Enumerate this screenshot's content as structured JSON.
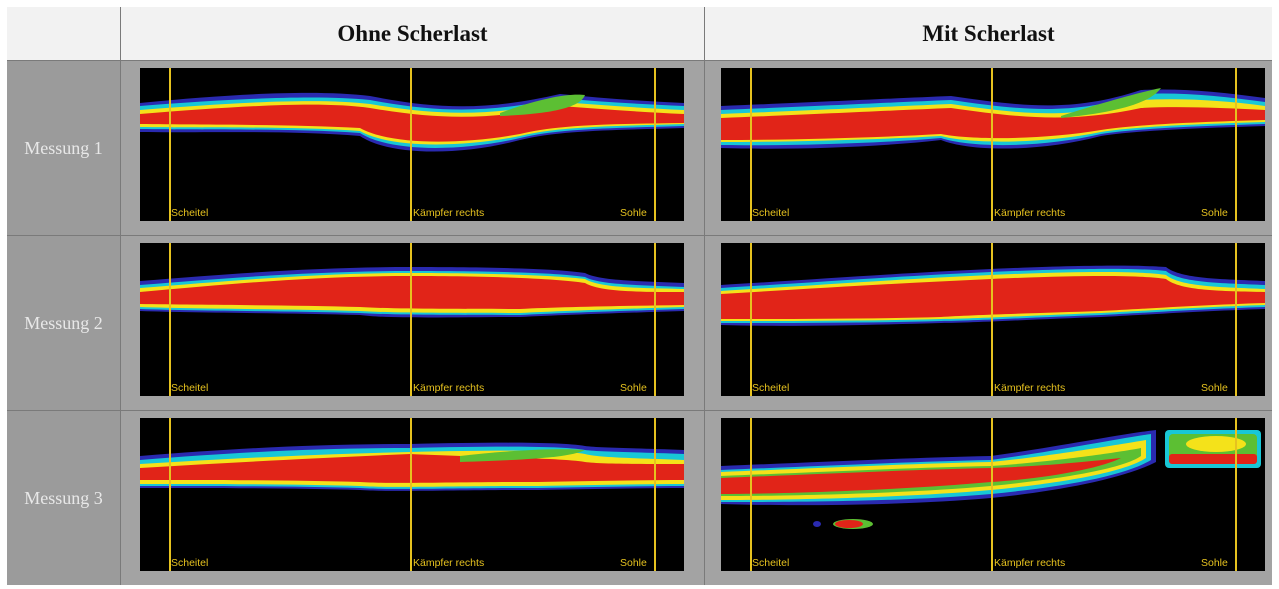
{
  "columns": [
    "Ohne Scherlast",
    "Mit Scherlast"
  ],
  "rows": [
    "Messung 1",
    "Messung 2",
    "Messung 3"
  ],
  "axis_labels": {
    "left": "Scheitel",
    "middle": "Kämpfer rechts",
    "right": "Sohle"
  },
  "colors": {
    "red": "#e12418",
    "yellow": "#f4e21a",
    "green": "#5cbf33",
    "cyan": "#18c7d6",
    "blue": "#2a2ab0",
    "line": "#e6c21f"
  }
}
